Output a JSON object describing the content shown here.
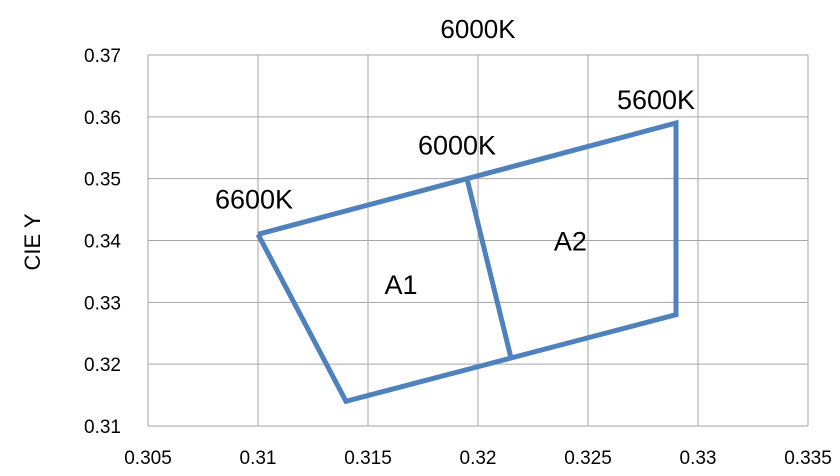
{
  "chart_data": {
    "type": "scatter",
    "title": "6000K",
    "xlabel": "",
    "ylabel": "CIE Y",
    "xlim": [
      0.305,
      0.335
    ],
    "ylim": [
      0.31,
      0.37
    ],
    "x_ticks": [
      "0.305",
      "0.31",
      "0.315",
      "0.32",
      "0.325",
      "0.33",
      "0.335"
    ],
    "y_ticks": [
      "0.31",
      "0.32",
      "0.33",
      "0.34",
      "0.35",
      "0.36",
      "0.37"
    ],
    "grid": true,
    "legend": "none",
    "line_color": "#4f81bd",
    "series": [
      {
        "x": [
          0.31,
          0.3195,
          0.329,
          0.329,
          0.3215,
          0.314,
          0.31
        ],
        "y": [
          0.341,
          0.35,
          0.359,
          0.328,
          0.321,
          0.314,
          0.341
        ]
      },
      {
        "x": [
          0.3195,
          0.3215
        ],
        "y": [
          0.35,
          0.321
        ]
      }
    ],
    "annotations": [
      {
        "text": "6600K",
        "x": 0.31,
        "y": 0.341
      },
      {
        "text": "6000K",
        "x": 0.3195,
        "y": 0.35
      },
      {
        "text": "5600K",
        "x": 0.329,
        "y": 0.359
      },
      {
        "text": "A1",
        "x": 0.3165,
        "y": 0.333
      },
      {
        "text": "A2",
        "x": 0.3242,
        "y": 0.34
      }
    ]
  }
}
